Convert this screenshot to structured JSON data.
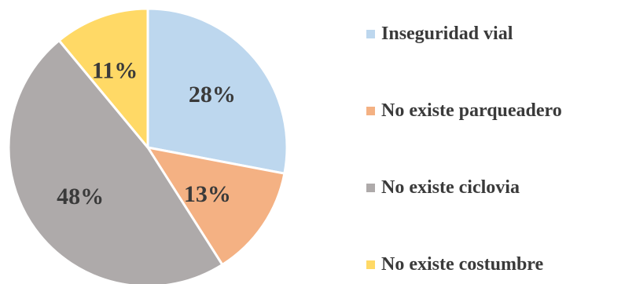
{
  "chart_data": {
    "type": "pie",
    "categories": [
      "Inseguridad vial",
      "No existe parqueadero",
      "No existe ciclovia",
      "No existe costumbre"
    ],
    "values": [
      28,
      13,
      48,
      11
    ],
    "data_labels": [
      "28%",
      "13%",
      "48%",
      "11%"
    ],
    "colors": [
      "#bdd7ee",
      "#f4b183",
      "#aeaaaa",
      "#ffd966"
    ],
    "start_angle": "12 o'clock",
    "direction": "clockwise",
    "legend_position": "right",
    "title": ""
  },
  "legend": {
    "items": [
      {
        "label": "Inseguridad vial",
        "color": "#bdd7ee"
      },
      {
        "label": " No existe parqueadero",
        "color": "#f4b183"
      },
      {
        "label": "No existe ciclovia",
        "color": "#aeaaaa"
      },
      {
        "label": "No existe costumbre",
        "color": "#ffd966"
      }
    ]
  }
}
